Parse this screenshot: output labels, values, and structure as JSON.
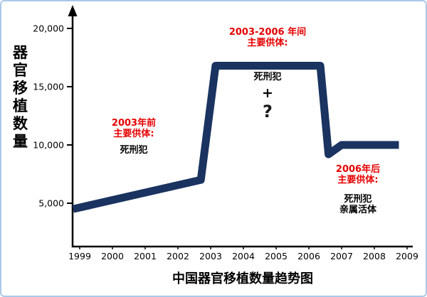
{
  "page": {
    "frame_border_color": "#abc9e9",
    "background": "#ffffff"
  },
  "chart_data": {
    "type": "line",
    "title": "中国器官移植数量趋势图",
    "ylabel": "器官移植数量",
    "xlabel": "",
    "x_ticks": [
      "1999",
      "2000",
      "2001",
      "2002",
      "2003",
      "2004",
      "2005",
      "2006",
      "2007",
      "2008",
      "2009"
    ],
    "y_ticks": [
      5000,
      10000,
      15000,
      20000
    ],
    "y_tick_labels": [
      "5,000",
      "10,000",
      "15,000",
      "20,000"
    ],
    "xlim": [
      1998.75,
      2009.4
    ],
    "ylim": [
      0,
      21000
    ],
    "grid": false,
    "legend": false,
    "line_color": "#1a3360",
    "line_width": 11,
    "annotation_red_color": "#e60000",
    "series": [
      {
        "name": "器官移植数量",
        "points": [
          {
            "x": 1998.8,
            "y": 4500
          },
          {
            "x": 2002.7,
            "y": 7000
          },
          {
            "x": 2003.15,
            "y": 16800
          },
          {
            "x": 2006.35,
            "y": 16800
          },
          {
            "x": 2006.6,
            "y": 9200
          },
          {
            "x": 2007.0,
            "y": 10000
          },
          {
            "x": 2008.75,
            "y": 10000
          }
        ]
      }
    ],
    "annotations": [
      {
        "red": [
          "2003年前",
          "主要供体:"
        ],
        "black": [
          "死刑犯"
        ]
      },
      {
        "red": [
          "2003-2006 年间",
          "主要供体:"
        ],
        "black": [
          "死刑犯",
          "+",
          "?"
        ]
      },
      {
        "red": [
          "2006年后",
          "主要供体:"
        ],
        "black": [
          "死刑犯",
          "亲属活体"
        ]
      }
    ]
  }
}
